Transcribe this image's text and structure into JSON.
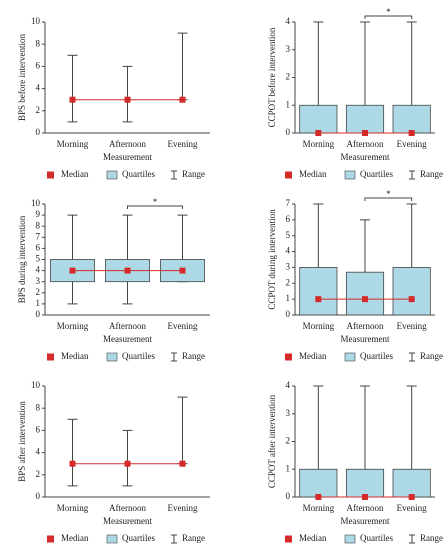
{
  "chart_data": [
    {
      "type": "box",
      "ylabel": "BPS before intervention",
      "xlabel": "Measurement",
      "categories": [
        "Morning",
        "Afternoon",
        "Evening"
      ],
      "median": [
        3,
        3,
        3
      ],
      "q1": [
        3,
        3,
        3
      ],
      "q3": [
        3,
        3,
        3
      ],
      "min": [
        1,
        1,
        3
      ],
      "max": [
        7,
        6,
        9
      ],
      "ylim": [
        0,
        10
      ],
      "yticks": [
        0,
        2,
        4,
        6,
        8,
        10
      ],
      "legend": [
        "Median",
        "Quartiles",
        "Range"
      ],
      "median_color": "#d42a2a",
      "box_color": "#add8e6",
      "annotations": []
    },
    {
      "type": "box",
      "ylabel": "CCPOT before intervention",
      "xlabel": "Measurement",
      "categories": [
        "Morning",
        "Afternoon",
        "Evening"
      ],
      "median": [
        0,
        0,
        0
      ],
      "q1": [
        0,
        0,
        0
      ],
      "q3": [
        1,
        1,
        1
      ],
      "min": [
        0,
        0,
        0
      ],
      "max": [
        4,
        4,
        4
      ],
      "ylim": [
        0,
        4
      ],
      "yticks": [
        0,
        1,
        2,
        3,
        4
      ],
      "legend": [
        "Median",
        "Quartiles",
        "Range"
      ],
      "median_color": "#d42a2a",
      "box_color": "#add8e6",
      "annotations": [
        {
          "text": "*",
          "between": [
            "Afternoon",
            "Evening"
          ]
        }
      ]
    },
    {
      "type": "box",
      "ylabel": "BPS during intervention",
      "xlabel": "Measurement",
      "categories": [
        "Morning",
        "Afternoon",
        "Evening"
      ],
      "median": [
        4,
        4,
        4
      ],
      "q1": [
        3,
        3,
        3
      ],
      "q3": [
        5,
        5,
        5
      ],
      "min": [
        1,
        1,
        3
      ],
      "max": [
        9,
        9,
        9
      ],
      "ylim": [
        0,
        10
      ],
      "yticks": [
        0,
        1,
        2,
        3,
        4,
        5,
        6,
        7,
        8,
        9,
        10
      ],
      "legend": [
        "Median",
        "Quartiles",
        "Range"
      ],
      "median_color": "#d42a2a",
      "box_color": "#add8e6",
      "annotations": [
        {
          "text": "*",
          "between": [
            "Afternoon",
            "Evening"
          ]
        }
      ]
    },
    {
      "type": "box",
      "ylabel": "CCPOT during intervention",
      "xlabel": "Measurement",
      "categories": [
        "Morning",
        "Afternoon",
        "Evening"
      ],
      "median": [
        1,
        1,
        1
      ],
      "q1": [
        0,
        0,
        0
      ],
      "q3": [
        3,
        2.7,
        3
      ],
      "min": [
        0,
        0,
        0
      ],
      "max": [
        7,
        6,
        7
      ],
      "ylim": [
        0,
        7
      ],
      "yticks": [
        0,
        1,
        2,
        3,
        4,
        5,
        6,
        7
      ],
      "legend": [
        "Median",
        "Quartiles",
        "Range"
      ],
      "median_color": "#d42a2a",
      "box_color": "#add8e6",
      "annotations": [
        {
          "text": "*",
          "between": [
            "Afternoon",
            "Evening"
          ]
        }
      ]
    },
    {
      "type": "box",
      "ylabel": "BPS after intervention",
      "xlabel": "Measurement",
      "categories": [
        "Morning",
        "Afternoon",
        "Evening"
      ],
      "median": [
        3,
        3,
        3
      ],
      "q1": [
        3,
        3,
        3
      ],
      "q3": [
        3,
        3,
        3
      ],
      "min": [
        1,
        1,
        3
      ],
      "max": [
        7,
        6,
        9
      ],
      "ylim": [
        0,
        10
      ],
      "yticks": [
        0,
        2,
        4,
        6,
        8,
        10
      ],
      "legend": [
        "Median",
        "Quartiles",
        "Range"
      ],
      "median_color": "#d42a2a",
      "box_color": "#add8e6",
      "annotations": []
    },
    {
      "type": "box",
      "ylabel": "CCPOT after intervention",
      "xlabel": "Measurement",
      "categories": [
        "Morning",
        "Afternoon",
        "Evening"
      ],
      "median": [
        0,
        0,
        0
      ],
      "q1": [
        0,
        0,
        0
      ],
      "q3": [
        1,
        1,
        1
      ],
      "min": [
        0,
        0,
        0
      ],
      "max": [
        4,
        4,
        4
      ],
      "ylim": [
        0,
        4
      ],
      "yticks": [
        0,
        1,
        2,
        3,
        4
      ],
      "legend": [
        "Median",
        "Quartiles",
        "Range"
      ],
      "median_color": "#d42a2a",
      "box_color": "#add8e6",
      "annotations": []
    }
  ]
}
